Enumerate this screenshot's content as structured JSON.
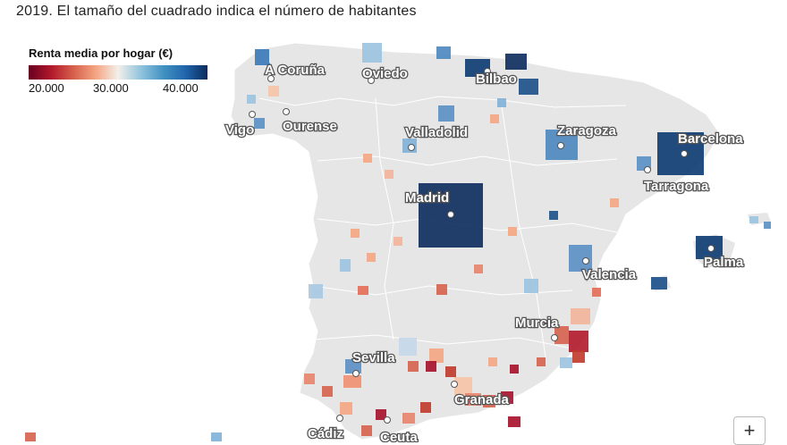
{
  "subtitle": "2019. El tamaño del cuadrado indica el número de habitantes",
  "legend": {
    "title": "Renta media por hogar (€)",
    "ticks": [
      "20.000",
      "30.000",
      "40.000"
    ]
  },
  "cities": [
    "A Coruña",
    "Oviedo",
    "Bilbao",
    "Vigo",
    "Ourense",
    "Valladolid",
    "Zaragoza",
    "Barcelona",
    "Tarragona",
    "Madrid",
    "Palma",
    "Valencia",
    "Murcia",
    "Sevilla",
    "Granada",
    "Cádiz",
    "Ceuta"
  ],
  "zoom_label": "+",
  "colors": {
    "land": "#e6e6e6",
    "borders": "#ffffff",
    "low_income": "#b2182b",
    "high_income": "#0b2b5c"
  }
}
